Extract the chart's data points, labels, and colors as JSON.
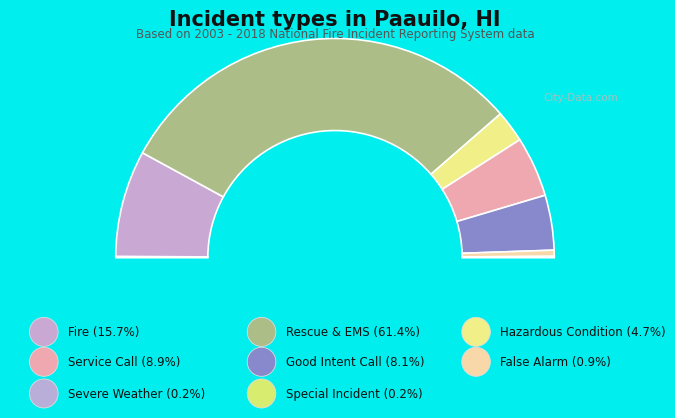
{
  "title": "Incident types in Paauilo, HI",
  "subtitle": "Based on 2003 - 2018 National Fire Incident Reporting System data",
  "background_color": "#00EEEE",
  "chart_bg": "#edf5e1",
  "segments": [
    {
      "label": "Severe Weather (0.2%)",
      "value": 0.2,
      "color": "#b8aed8"
    },
    {
      "label": "Fire (15.7%)",
      "value": 15.7,
      "color": "#c9a8d4"
    },
    {
      "label": "Rescue & EMS (61.4%)",
      "value": 61.4,
      "color": "#adb d88"
    },
    {
      "label": "Hazardous Condition (4.7%)",
      "value": 4.7,
      "color": "#f0ef88"
    },
    {
      "label": "Service Call (8.9%)",
      "value": 8.9,
      "color": "#f0a8b0"
    },
    {
      "label": "Good Intent Call (8.1%)",
      "value": 8.1,
      "color": "#8888cc"
    },
    {
      "label": "False Alarm (0.9%)",
      "value": 0.9,
      "color": "#f8d8a8"
    },
    {
      "label": "Special Incident (0.2%)",
      "value": 0.2,
      "color": "#d8ec70"
    }
  ],
  "legend_cols": [
    [
      {
        "label": "Fire (15.7%)",
        "color": "#c9a8d4"
      },
      {
        "label": "Service Call (8.9%)",
        "color": "#f0a8b0"
      },
      {
        "label": "Severe Weather (0.2%)",
        "color": "#b8aed8"
      }
    ],
    [
      {
        "label": "Rescue & EMS (61.4%)",
        "color": "#adbd88"
      },
      {
        "label": "Good Intent Call (8.1%)",
        "color": "#8888cc"
      },
      {
        "label": "Special Incident (0.2%)",
        "color": "#d8ec70"
      }
    ],
    [
      {
        "label": "Hazardous Condition (4.7%)",
        "color": "#f0ef88"
      },
      {
        "label": "False Alarm (0.9%)",
        "color": "#f8d8a8"
      }
    ]
  ],
  "title_fontsize": 15,
  "subtitle_fontsize": 8.5,
  "legend_fontsize": 8.5,
  "r_out": 1.0,
  "r_in": 0.58
}
